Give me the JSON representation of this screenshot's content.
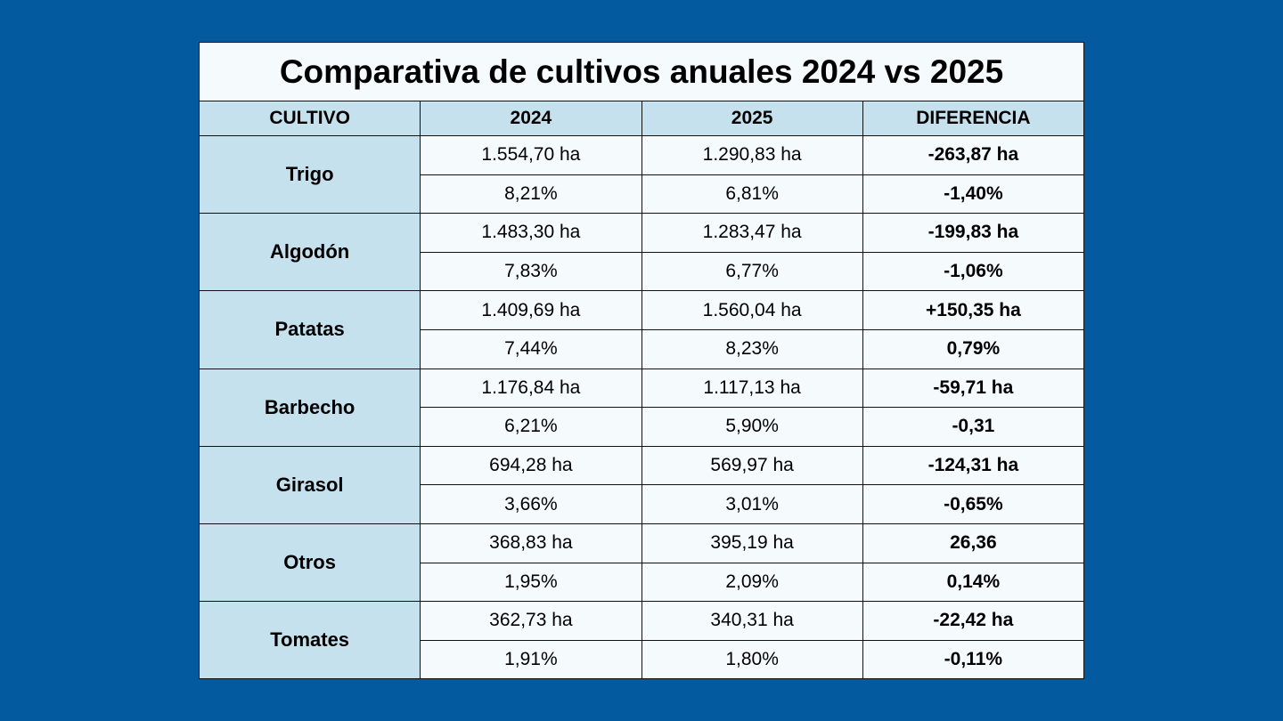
{
  "title": "Comparativa de cultivos anuales 2024 vs 2025",
  "headers": [
    "CULTIVO",
    "2024",
    "2025",
    "DIFERENCIA"
  ],
  "rows": [
    {
      "crop": "Trigo",
      "ha": [
        "1.554,70 ha",
        "1.290,83 ha",
        "-263,87 ha"
      ],
      "pct": [
        "8,21%",
        "6,81%",
        "-1,40%"
      ]
    },
    {
      "crop": "Algodón",
      "ha": [
        "1.483,30 ha",
        "1.283,47 ha",
        "-199,83 ha"
      ],
      "pct": [
        "7,83%",
        "6,77%",
        "-1,06%"
      ]
    },
    {
      "crop": "Patatas",
      "ha": [
        "1.409,69 ha",
        "1.560,04 ha",
        "+150,35 ha"
      ],
      "pct": [
        "7,44%",
        "8,23%",
        "0,79%"
      ]
    },
    {
      "crop": "Barbecho",
      "ha": [
        "1.176,84 ha",
        "1.117,13 ha",
        "-59,71 ha"
      ],
      "pct": [
        "6,21%",
        "5,90%",
        "-0,31"
      ]
    },
    {
      "crop": "Girasol",
      "ha": [
        "694,28 ha",
        "569,97 ha",
        "-124,31 ha"
      ],
      "pct": [
        "3,66%",
        "3,01%",
        "-0,65%"
      ]
    },
    {
      "crop": "Otros",
      "ha": [
        "368,83 ha",
        "395,19 ha",
        "26,36"
      ],
      "pct": [
        "1,95%",
        "2,09%",
        "0,14%"
      ]
    },
    {
      "crop": "Tomates",
      "ha": [
        "362,73 ha",
        "340,31 ha",
        "-22,42 ha"
      ],
      "pct": [
        "1,91%",
        "1,80%",
        "-0,11%"
      ]
    }
  ],
  "colors": {
    "background": "#045a9e",
    "header_fill": "#c5e1ee",
    "cell_fill": "#f5fafd"
  }
}
